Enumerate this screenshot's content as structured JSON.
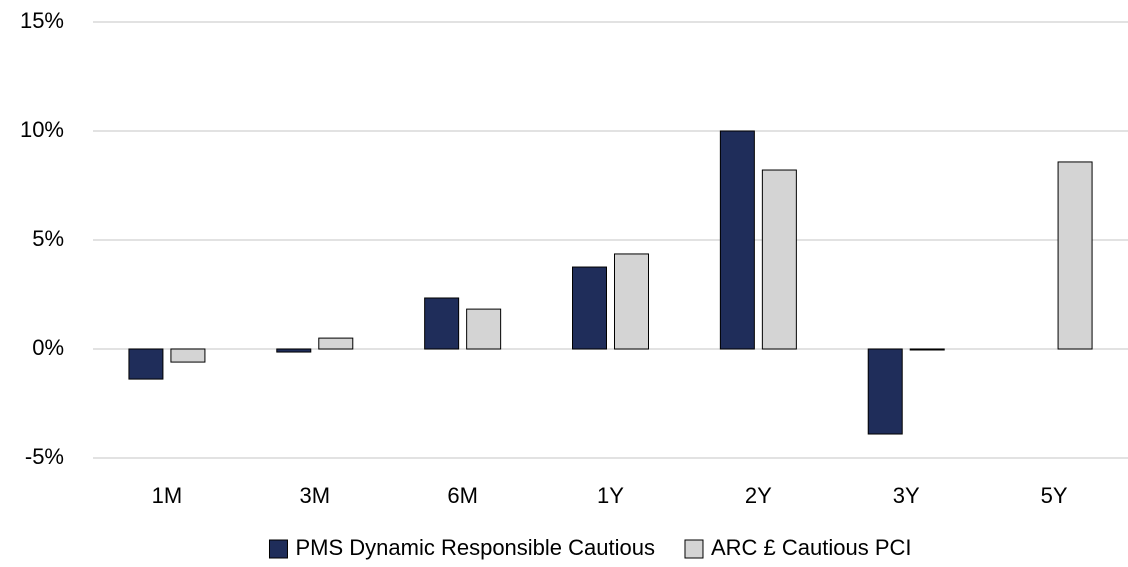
{
  "chart_data": {
    "type": "bar",
    "categories": [
      "1M",
      "3M",
      "6M",
      "1Y",
      "2Y",
      "3Y",
      "5Y"
    ],
    "series": [
      {
        "name": "PMS Dynamic Responsible Cautious",
        "color": "#1f2d5a",
        "values": [
          -1.38,
          -0.14,
          2.34,
          3.76,
          10.0,
          -3.9,
          null
        ]
      },
      {
        "name": "ARC £ Cautious PCI",
        "color": "#d4d4d4",
        "values": [
          -0.6,
          0.5,
          1.83,
          4.36,
          8.21,
          -0.03,
          8.58
        ]
      }
    ],
    "ylim": [
      -5,
      15
    ],
    "yticks": [
      {
        "value": -5,
        "label": "-5%"
      },
      {
        "value": 0,
        "label": "0%"
      },
      {
        "value": 5,
        "label": "5%"
      },
      {
        "value": 10,
        "label": "10%"
      },
      {
        "value": 15,
        "label": "15%"
      }
    ],
    "grid": true,
    "legend": "bottom"
  }
}
